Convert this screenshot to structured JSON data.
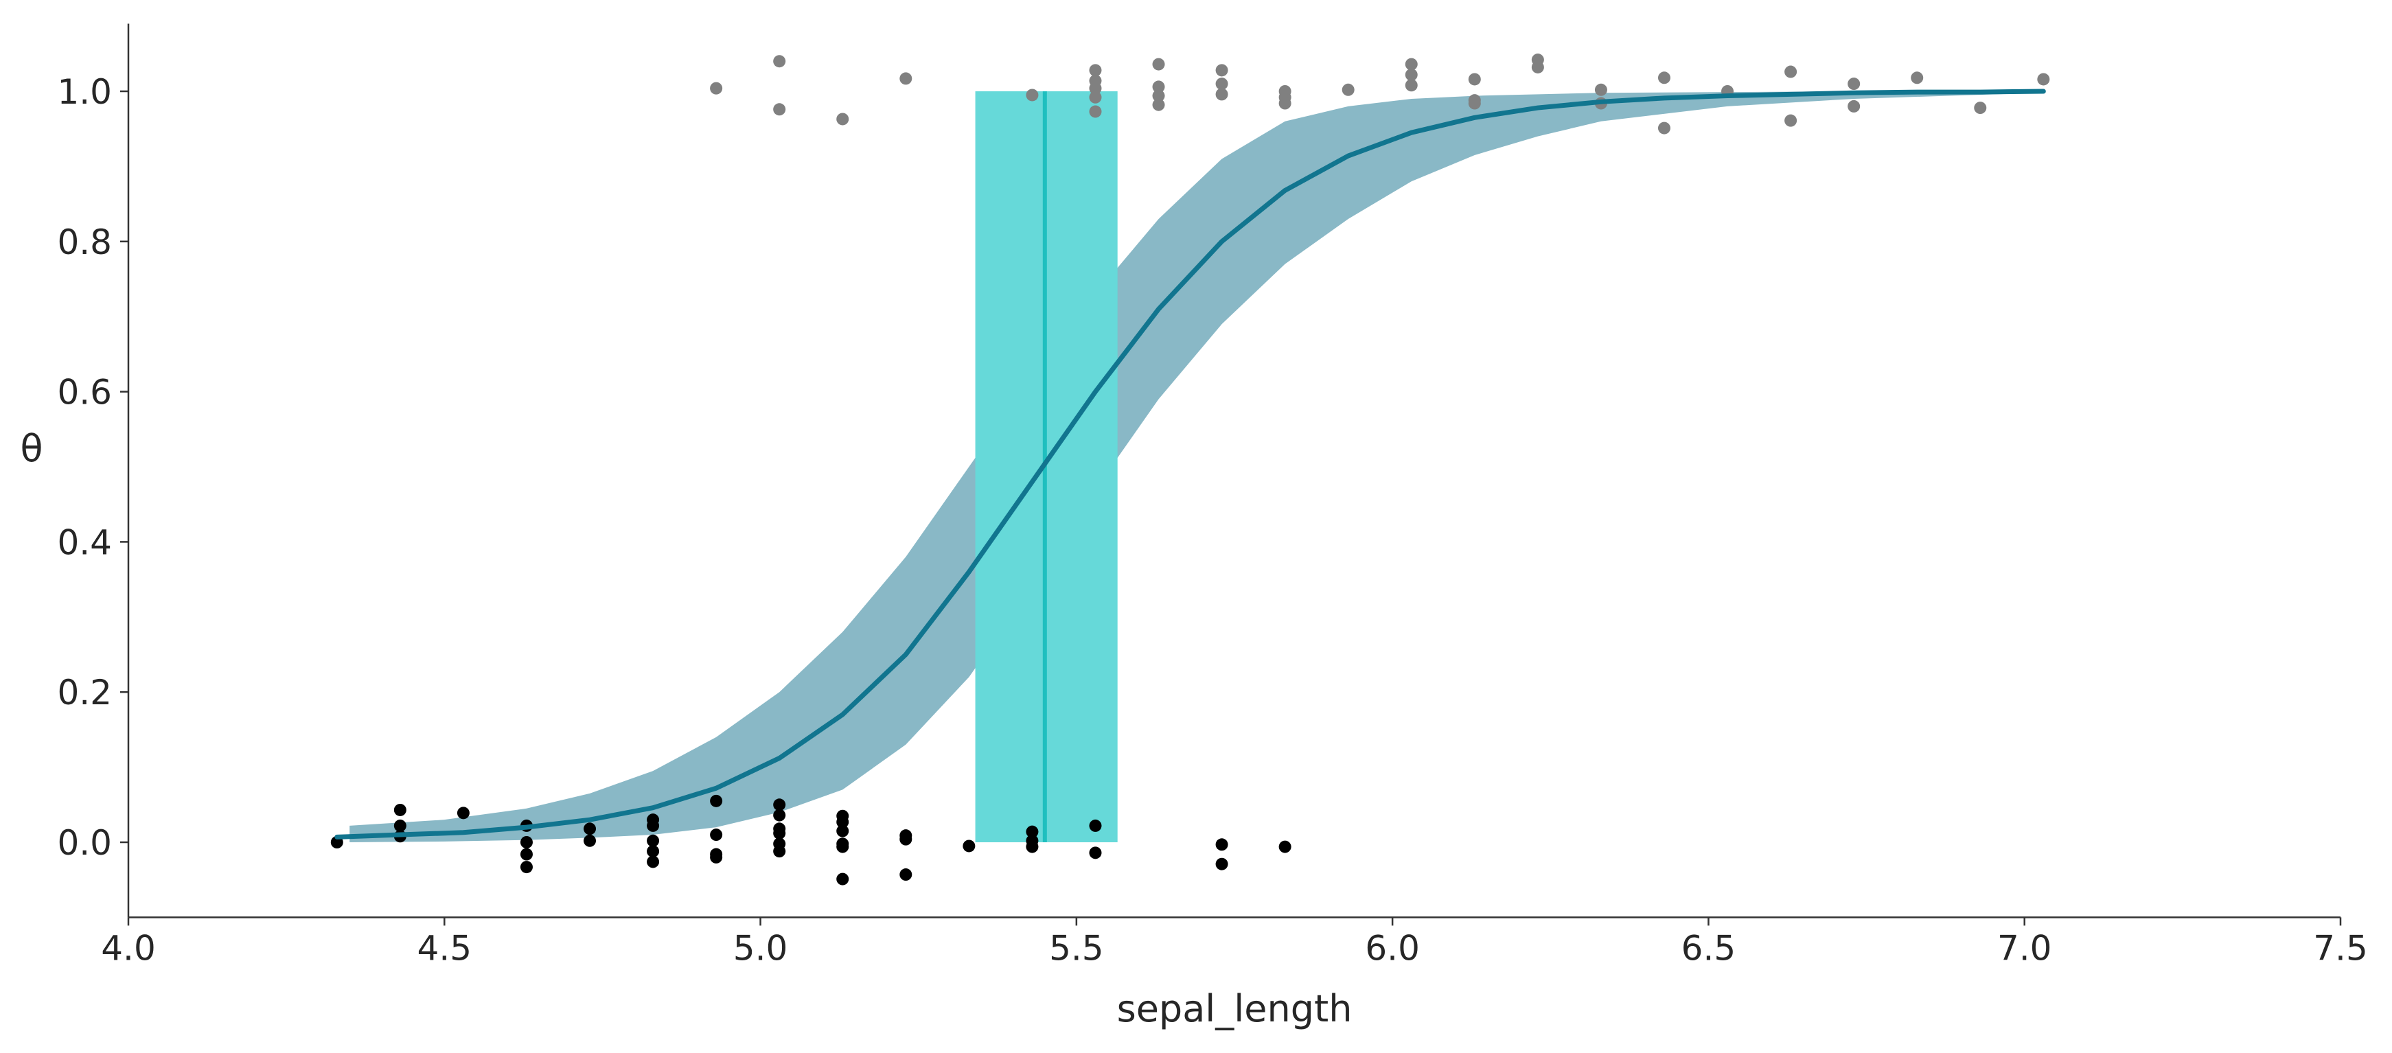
{
  "chart_data": {
    "type": "scatter",
    "title": "",
    "xlabel": "sepal_length",
    "ylabel": "θ",
    "xlim": [
      4.0,
      7.5
    ],
    "ylim": [
      -0.1,
      1.09
    ],
    "grid": false,
    "xticks": [
      "4.0",
      "4.5",
      "5.0",
      "5.5",
      "6.0",
      "6.5",
      "7.0",
      "7.5"
    ],
    "yticks": [
      "0.0",
      "0.2",
      "0.4",
      "0.6",
      "0.8",
      "1.0"
    ],
    "colors": {
      "hdi_band": "#89b8c6",
      "mean_line": "#11758f",
      "boundary_band": "#66d9d9",
      "boundary_line": "#1fbfbf",
      "class0_points": "#000000",
      "class1_points": "#808080"
    },
    "mean_curve": {
      "x": [
        4.33,
        4.43,
        4.53,
        4.63,
        4.73,
        4.83,
        4.93,
        5.03,
        5.13,
        5.23,
        5.33,
        5.43,
        5.53,
        5.63,
        5.73,
        5.83,
        5.93,
        6.03,
        6.13,
        6.23,
        6.33,
        6.43,
        6.53,
        6.63,
        6.73,
        6.83,
        6.93,
        7.03
      ],
      "y": [
        0.007,
        0.01,
        0.013,
        0.02,
        0.03,
        0.046,
        0.072,
        0.112,
        0.17,
        0.25,
        0.36,
        0.48,
        0.6,
        0.71,
        0.8,
        0.868,
        0.914,
        0.945,
        0.965,
        0.978,
        0.986,
        0.991,
        0.994,
        0.996,
        0.998,
        0.999,
        0.999,
        1.0
      ]
    },
    "hdi_band": {
      "x": [
        4.35,
        4.5,
        4.63,
        4.73,
        4.83,
        4.93,
        5.03,
        5.13,
        5.23,
        5.33,
        5.43,
        5.53,
        5.63,
        5.73,
        5.83,
        5.93,
        6.03,
        6.13,
        6.23,
        6.33,
        6.53,
        6.73,
        7.03
      ],
      "upper": [
        0.022,
        0.03,
        0.045,
        0.065,
        0.095,
        0.14,
        0.2,
        0.28,
        0.38,
        0.5,
        0.62,
        0.73,
        0.83,
        0.91,
        0.96,
        0.98,
        0.99,
        0.994,
        0.996,
        0.998,
        0.999,
        1.0,
        1.0
      ],
      "lower": [
        0.0,
        0.001,
        0.003,
        0.006,
        0.01,
        0.02,
        0.04,
        0.07,
        0.13,
        0.22,
        0.34,
        0.47,
        0.59,
        0.69,
        0.77,
        0.83,
        0.88,
        0.915,
        0.94,
        0.96,
        0.98,
        0.99,
        0.998
      ]
    },
    "decision_boundary": {
      "mean": 5.45,
      "hdi": [
        5.34,
        5.565
      ],
      "y_range": [
        0,
        1
      ]
    },
    "class0_points": [
      [
        4.33,
        0.0
      ],
      [
        4.43,
        0.043
      ],
      [
        4.43,
        0.022
      ],
      [
        4.43,
        0.008
      ],
      [
        4.53,
        0.039
      ],
      [
        4.63,
        0.022
      ],
      [
        4.63,
        0.0
      ],
      [
        4.63,
        -0.016
      ],
      [
        4.63,
        -0.033
      ],
      [
        4.73,
        0.018
      ],
      [
        4.73,
        0.002
      ],
      [
        4.83,
        0.03
      ],
      [
        4.83,
        0.022
      ],
      [
        4.83,
        0.002
      ],
      [
        4.83,
        -0.012
      ],
      [
        4.83,
        -0.026
      ],
      [
        4.93,
        0.055
      ],
      [
        4.93,
        0.01
      ],
      [
        4.93,
        -0.016
      ],
      [
        4.93,
        -0.02
      ],
      [
        5.03,
        0.05
      ],
      [
        5.03,
        0.036
      ],
      [
        5.03,
        0.018
      ],
      [
        5.03,
        0.012
      ],
      [
        5.03,
        -0.002
      ],
      [
        5.03,
        -0.012
      ],
      [
        5.13,
        0.035
      ],
      [
        5.13,
        0.027
      ],
      [
        5.13,
        0.015
      ],
      [
        5.13,
        -0.002
      ],
      [
        5.13,
        -0.006
      ],
      [
        5.13,
        -0.049
      ],
      [
        5.23,
        0.009
      ],
      [
        5.23,
        0.004
      ],
      [
        5.23,
        -0.043
      ],
      [
        5.33,
        -0.005
      ],
      [
        5.43,
        0.014
      ],
      [
        5.43,
        0.002
      ],
      [
        5.43,
        -0.006
      ],
      [
        5.53,
        0.022
      ],
      [
        5.53,
        -0.014
      ],
      [
        5.73,
        -0.003
      ],
      [
        5.73,
        -0.029
      ],
      [
        5.83,
        -0.006
      ]
    ],
    "class1_points": [
      [
        4.93,
        1.004
      ],
      [
        5.03,
        1.04
      ],
      [
        5.03,
        0.976
      ],
      [
        5.13,
        0.963
      ],
      [
        5.23,
        1.017
      ],
      [
        5.43,
        0.995
      ],
      [
        5.53,
        1.028
      ],
      [
        5.53,
        1.014
      ],
      [
        5.53,
        1.004
      ],
      [
        5.53,
        0.992
      ],
      [
        5.53,
        0.973
      ],
      [
        5.63,
        1.036
      ],
      [
        5.63,
        1.006
      ],
      [
        5.63,
        0.994
      ],
      [
        5.63,
        0.982
      ],
      [
        5.73,
        1.028
      ],
      [
        5.73,
        1.01
      ],
      [
        5.73,
        0.996
      ],
      [
        5.83,
        1.0
      ],
      [
        5.83,
        0.992
      ],
      [
        5.83,
        0.984
      ],
      [
        5.93,
        1.002
      ],
      [
        6.03,
        1.036
      ],
      [
        6.03,
        1.022
      ],
      [
        6.03,
        1.008
      ],
      [
        6.13,
        1.016
      ],
      [
        6.13,
        0.988
      ],
      [
        6.13,
        0.984
      ],
      [
        6.23,
        1.042
      ],
      [
        6.23,
        1.032
      ],
      [
        6.33,
        1.002
      ],
      [
        6.33,
        0.984
      ],
      [
        6.43,
        1.018
      ],
      [
        6.43,
        0.951
      ],
      [
        6.53,
        1.0
      ],
      [
        6.63,
        1.026
      ],
      [
        6.63,
        0.961
      ],
      [
        6.73,
        1.01
      ],
      [
        6.73,
        0.98
      ],
      [
        6.83,
        1.018
      ],
      [
        6.93,
        0.978
      ],
      [
        7.03,
        1.016
      ]
    ]
  }
}
